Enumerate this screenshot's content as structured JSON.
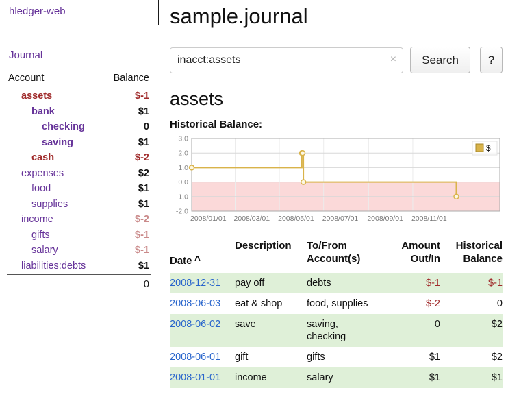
{
  "colors": {
    "purple": "#663399",
    "blue": "#2a66cc",
    "red": "#a02b2b",
    "lightred": "#ca8a8a",
    "green": "#dff0d8",
    "gold": "#d9b34a",
    "pink": "#fbd9d9"
  },
  "app": {
    "title": "hledger-web",
    "nav_journal": "Journal"
  },
  "sidebar": {
    "header": {
      "account": "Account",
      "balance": "Balance"
    },
    "accounts": [
      {
        "name": "assets",
        "balance": "$-1",
        "indent": 1,
        "bold": true,
        "name_color": "red",
        "balance_color": "red"
      },
      {
        "name": "bank",
        "balance": "$1",
        "indent": 2,
        "bold": true,
        "name_color": "purple",
        "balance_color": "black"
      },
      {
        "name": "checking",
        "balance": "0",
        "indent": 3,
        "bold": true,
        "name_color": "purple",
        "balance_color": "black"
      },
      {
        "name": "saving",
        "balance": "$1",
        "indent": 3,
        "bold": true,
        "name_color": "purple",
        "balance_color": "black"
      },
      {
        "name": "cash",
        "balance": "$-2",
        "indent": 2,
        "bold": true,
        "name_color": "red",
        "balance_color": "red"
      },
      {
        "name": "expenses",
        "balance": "$2",
        "indent": 1,
        "bold": false,
        "name_color": "purple",
        "balance_color": "black"
      },
      {
        "name": "food",
        "balance": "$1",
        "indent": 2,
        "bold": false,
        "name_color": "purple",
        "balance_color": "black"
      },
      {
        "name": "supplies",
        "balance": "$1",
        "indent": 2,
        "bold": false,
        "name_color": "purple",
        "balance_color": "black"
      },
      {
        "name": "income",
        "balance": "$-2",
        "indent": 1,
        "bold": false,
        "name_color": "purple",
        "balance_color": "lightred"
      },
      {
        "name": "gifts",
        "balance": "$-1",
        "indent": 2,
        "bold": false,
        "name_color": "purple",
        "balance_color": "lightred"
      },
      {
        "name": "salary",
        "balance": "$-1",
        "indent": 2,
        "bold": false,
        "name_color": "purple",
        "balance_color": "lightred"
      },
      {
        "name": "liabilities:debts",
        "balance": "$1",
        "indent": 1,
        "bold": false,
        "name_color": "purple",
        "balance_color": "black"
      }
    ],
    "total": "0"
  },
  "main": {
    "title": "sample.journal",
    "search": {
      "value": "inacct:assets",
      "clear_icon": "×",
      "button": "Search",
      "help": "?"
    },
    "account_heading": "assets",
    "chart_label": "Historical Balance:"
  },
  "chart_data": {
    "type": "line",
    "title": "Historical Balance",
    "style": "step-after",
    "legend_position": "top-right",
    "legend": [
      "$"
    ],
    "ylim": [
      -2,
      3
    ],
    "y_ticks": [
      3.0,
      2.0,
      1.0,
      0.0,
      -1.0,
      -2.0
    ],
    "x_domain": [
      "2008-01-01",
      "2009-03-01"
    ],
    "x_ticks": [
      {
        "date": "2008-01-01",
        "label": "2008/01/01"
      },
      {
        "date": "2008-03-01",
        "label": "2008/03/01"
      },
      {
        "date": "2008-05-01",
        "label": "2008/05/01"
      },
      {
        "date": "2008-07-01",
        "label": "2008/07/01"
      },
      {
        "date": "2008-09-01",
        "label": "2008/09/01"
      },
      {
        "date": "2008-11-01",
        "label": "2008/11/01"
      }
    ],
    "series": [
      {
        "name": "$",
        "color": "#d9b34a",
        "points": [
          {
            "date": "2008-01-01",
            "value": 1
          },
          {
            "date": "2008-06-01",
            "value": 2
          },
          {
            "date": "2008-06-02",
            "value": 2
          },
          {
            "date": "2008-06-03",
            "value": 0
          },
          {
            "date": "2008-12-31",
            "value": -1
          }
        ]
      }
    ],
    "negative_region_color": "#fbd9d9",
    "grid": true
  },
  "table": {
    "columns": [
      {
        "label": "Date",
        "sort": "^"
      },
      {
        "label": "Description"
      },
      {
        "label": "To/From\nAccount(s)"
      },
      {
        "label": "Amount\nOut/In"
      },
      {
        "label": "Historical\nBalance"
      }
    ],
    "rows": [
      {
        "date": "2008-12-31",
        "description": "pay off",
        "accounts": "debts",
        "amount": "$-1",
        "balance": "$-1",
        "amount_negative": true,
        "balance_negative": true,
        "shaded": true
      },
      {
        "date": "2008-06-03",
        "description": "eat & shop",
        "accounts": "food, supplies",
        "amount": "$-2",
        "balance": "0",
        "amount_negative": true,
        "balance_negative": false,
        "shaded": false
      },
      {
        "date": "2008-06-02",
        "description": "save",
        "accounts": "saving,\nchecking",
        "amount": "0",
        "balance": "$2",
        "amount_negative": false,
        "balance_negative": false,
        "shaded": true
      },
      {
        "date": "2008-06-01",
        "description": "gift",
        "accounts": "gifts",
        "amount": "$1",
        "balance": "$2",
        "amount_negative": false,
        "balance_negative": false,
        "shaded": false
      },
      {
        "date": "2008-01-01",
        "description": "income",
        "accounts": "salary",
        "amount": "$1",
        "balance": "$1",
        "amount_negative": false,
        "balance_negative": false,
        "shaded": true
      }
    ]
  }
}
